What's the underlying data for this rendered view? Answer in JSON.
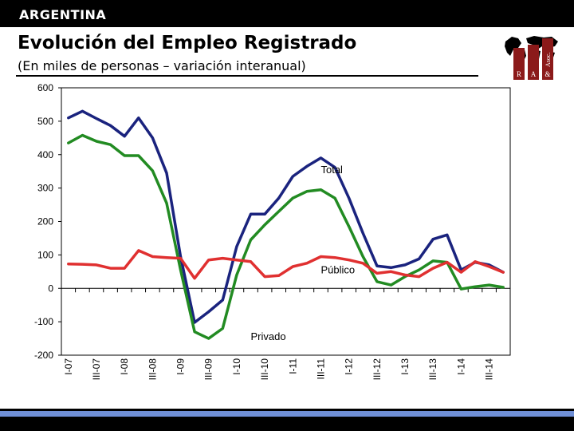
{
  "header": {
    "country": "ARGENTINA",
    "title": "Evolución del Empleo Registrado",
    "subtitle": "(En miles de personas – variación interanual)"
  },
  "logo": {
    "letters": [
      "R",
      "A",
      "&"
    ],
    "vertical_text": "Asoc."
  },
  "colors": {
    "background": "#ffffff",
    "frame_dark": "#000000",
    "accent_stripe": "#6f8fd6",
    "logo_red": "#8b1a1a"
  },
  "chart_data": {
    "type": "line",
    "title": "",
    "xlabel": "",
    "ylabel": "",
    "ylim": [
      -200,
      600
    ],
    "yticks": [
      600,
      500,
      400,
      300,
      200,
      100,
      0,
      -100,
      -200
    ],
    "grid": false,
    "categories": [
      "I-07",
      "II-07",
      "III-07",
      "IV-07",
      "I-08",
      "II-08",
      "III-08",
      "IV-08",
      "I-09",
      "II-09",
      "III-09",
      "IV-09",
      "I-10",
      "II-10",
      "III-10",
      "IV-10",
      "I-11",
      "II-11",
      "III-11",
      "IV-11",
      "I-12",
      "II-12",
      "III-12",
      "IV-12",
      "I-13",
      "II-13",
      "III-13",
      "IV-13",
      "I-14",
      "II-14",
      "III-14",
      "IV-14"
    ],
    "tick_labels": [
      "I-07",
      "III-07",
      "I-08",
      "III-08",
      "I-09",
      "III-09",
      "I-10",
      "III-10",
      "I-11",
      "III-11",
      "I-12",
      "III-12",
      "I-13",
      "III-13",
      "I-14",
      "III-14"
    ],
    "series": [
      {
        "name": "Total",
        "color": "#1a237e",
        "values": [
          510,
          530,
          508,
          487,
          455,
          510,
          450,
          345,
          95,
          -102,
          -70,
          -35,
          125,
          222,
          222,
          270,
          335,
          365,
          390,
          362,
          270,
          165,
          67,
          62,
          70,
          88,
          147,
          160,
          55,
          78,
          70,
          48
        ]
      },
      {
        "name": "Privado",
        "color": "#228b22",
        "values": [
          435,
          458,
          440,
          430,
          397,
          397,
          352,
          255,
          55,
          -130,
          -150,
          -120,
          40,
          145,
          190,
          230,
          270,
          290,
          295,
          270,
          185,
          95,
          20,
          10,
          35,
          55,
          82,
          78,
          -2,
          5,
          10,
          3
        ]
      },
      {
        "name": "Público",
        "color": "#e03030",
        "values": [
          73,
          72,
          70,
          60,
          60,
          113,
          95,
          92,
          90,
          30,
          85,
          90,
          85,
          80,
          35,
          38,
          65,
          75,
          95,
          92,
          85,
          75,
          45,
          50,
          40,
          35,
          60,
          78,
          48,
          80,
          65,
          48
        ]
      }
    ],
    "annotations": [
      {
        "text": "Total",
        "x": "III-11",
        "y": 345
      },
      {
        "text": "Público",
        "x": "III-11",
        "y": 45
      },
      {
        "text": "Privado",
        "x": "II-10",
        "y": -155
      }
    ]
  }
}
